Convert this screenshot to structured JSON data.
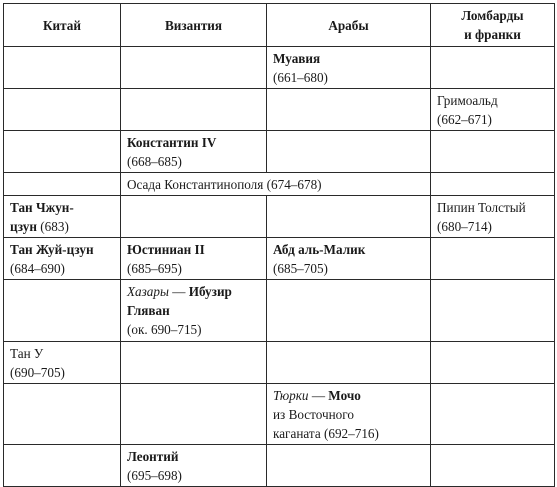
{
  "table": {
    "headers": {
      "china": "Китай",
      "byzantium": "Византия",
      "arabs": "Арабы",
      "lombards_line1": "Ломбарды",
      "lombards_line2": "и франки"
    },
    "rows": {
      "muawiya": {
        "name": "Муавия",
        "years": "(661–680)"
      },
      "grimoald": {
        "name": "Гримоальд",
        "years": "(662–671)"
      },
      "constantine": {
        "name": "Константин IV",
        "years": "(668–685)"
      },
      "siege": "Осада Константинополя (674–678)",
      "tan_zhun": {
        "name_line1": "Тан Чжун-",
        "name_line2": "цзун",
        "years": "(683)"
      },
      "pippin": {
        "name": "Пипин Толстый",
        "years": "(680–714)"
      },
      "tan_zhui": {
        "name": "Тан Жуй-цзун",
        "years": "(684–690)"
      },
      "justinian": {
        "name": "Юстиниан II",
        "years": "(685–695)"
      },
      "abd_al_malik": {
        "name": "Абд аль-Малик",
        "years": "(685–705)"
      },
      "khazars": {
        "people": "Хазары",
        "dash": " — ",
        "name_line1": "Ибузир",
        "name_line2": "Гляван",
        "years": "(ок. 690–715)"
      },
      "tan_u": {
        "name": "Тан У",
        "years": "(690–705)"
      },
      "turks": {
        "people": "Тюрки",
        "dash": " — ",
        "name": "Мочо",
        "from_line1": "из Восточного",
        "from_line2": "каганата (692–716)"
      },
      "leontius": {
        "name": "Леонтий",
        "years": "(695–698)"
      }
    }
  }
}
